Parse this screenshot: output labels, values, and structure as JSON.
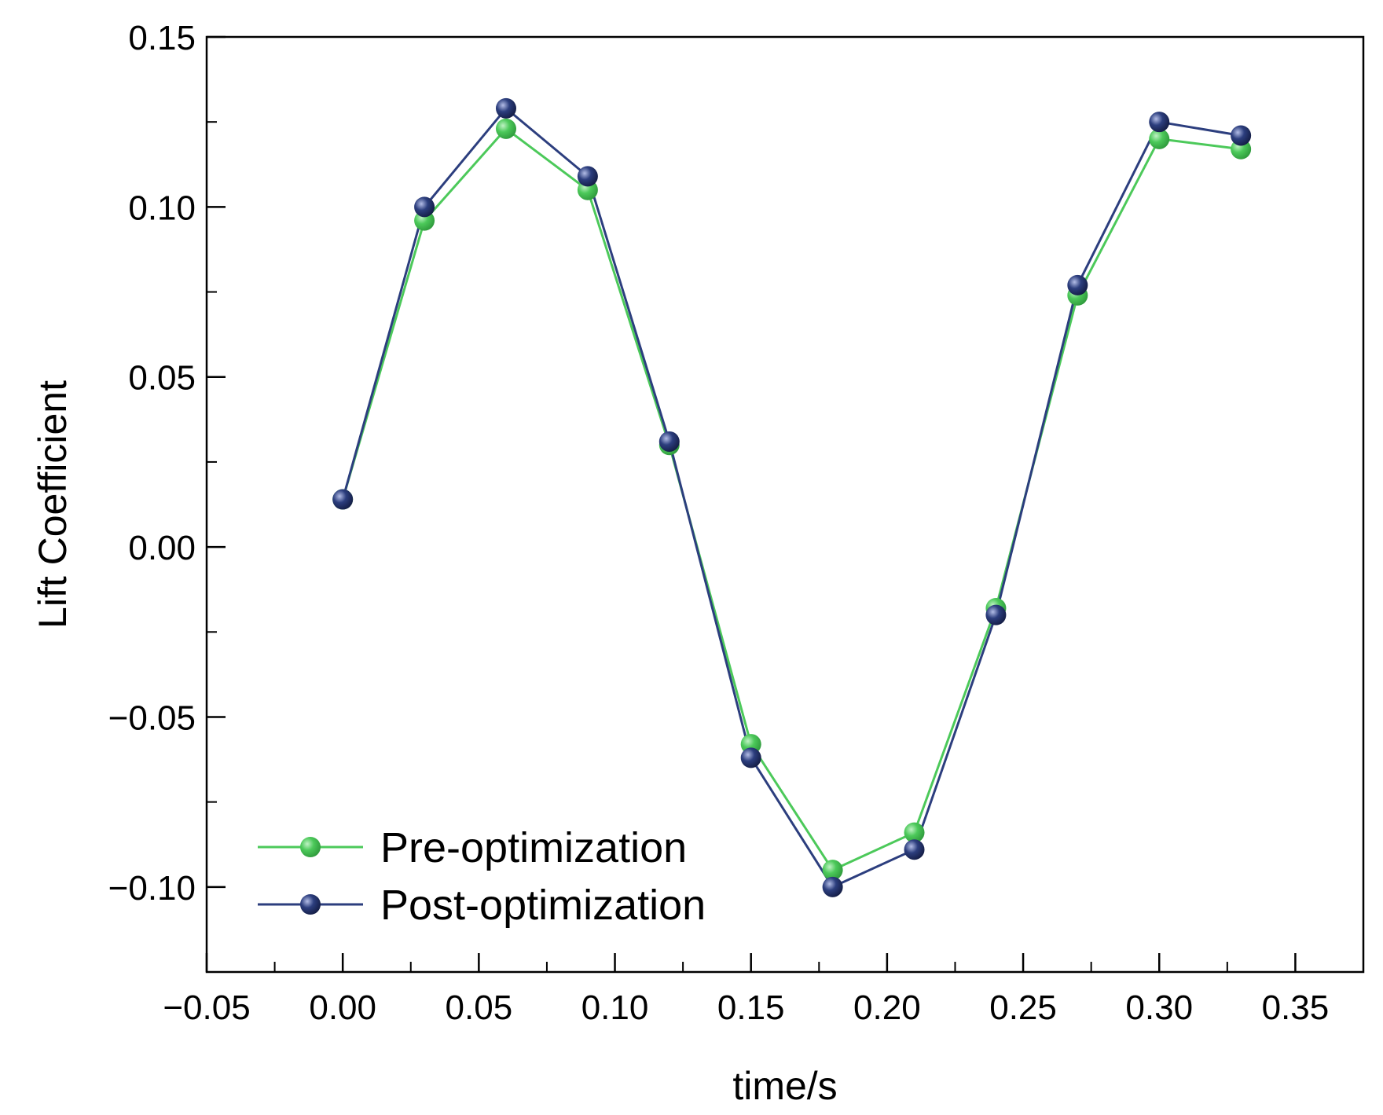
{
  "chart_data": {
    "type": "line",
    "title": "",
    "xlabel": "time/s",
    "ylabel": "Lift Coefficient",
    "xlim": [
      -0.05,
      0.375
    ],
    "ylim": [
      -0.125,
      0.15
    ],
    "grid": false,
    "legend_position": "bottom-left",
    "x_ticks": [
      -0.05,
      0.0,
      0.05,
      0.1,
      0.15,
      0.2,
      0.25,
      0.3,
      0.35
    ],
    "x_tick_labels": [
      "−0.05",
      "0.00",
      "0.05",
      "0.10",
      "0.15",
      "0.20",
      "0.25",
      "0.30",
      "0.35"
    ],
    "y_ticks": [
      -0.1,
      -0.05,
      0.0,
      0.05,
      0.1,
      0.15
    ],
    "y_tick_labels": [
      "−0.10",
      "−0.05",
      "0.00",
      "0.05",
      "0.10",
      "0.15"
    ],
    "x": [
      0.0,
      0.03,
      0.06,
      0.09,
      0.12,
      0.15,
      0.18,
      0.21,
      0.24,
      0.27,
      0.3,
      0.33
    ],
    "series": [
      {
        "name": "Pre-optimization",
        "color": "#4cc95a",
        "values": [
          0.014,
          0.096,
          0.123,
          0.105,
          0.03,
          -0.058,
          -0.095,
          -0.084,
          -0.018,
          0.074,
          0.12,
          0.117
        ]
      },
      {
        "name": "Post-optimization",
        "color": "#2c3e7e",
        "values": [
          0.014,
          0.1,
          0.129,
          0.109,
          0.031,
          -0.062,
          -0.1,
          -0.089,
          -0.02,
          0.077,
          0.125,
          0.121
        ]
      }
    ]
  }
}
